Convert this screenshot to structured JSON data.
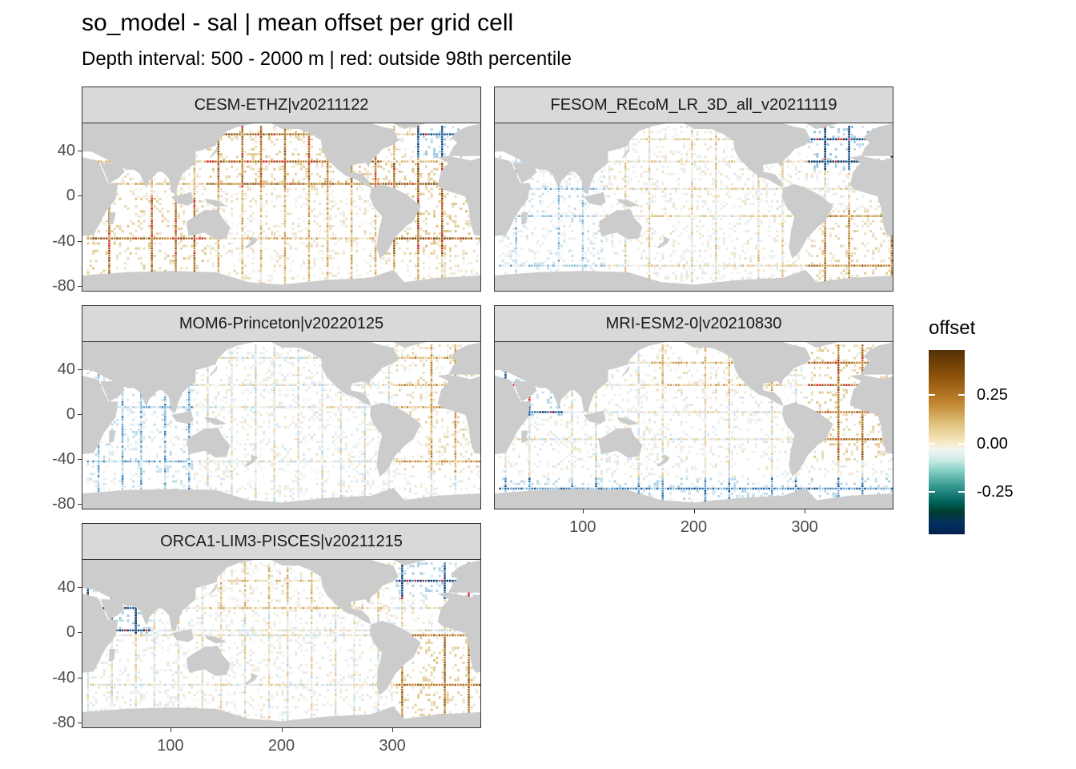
{
  "chart_data": {
    "type": "heatmap",
    "title": "so_model - sal  | mean offset per grid cell",
    "subtitle": "Depth interval: 500 - 2000 m | red: outside 98th percentile",
    "x_ticks": [
      100,
      200,
      300
    ],
    "y_ticks": [
      40,
      0,
      -40,
      -80
    ],
    "xlim": [
      20,
      380
    ],
    "ylim": [
      -85,
      65
    ],
    "legend": {
      "title": "offset",
      "ticks": [
        0.25,
        0.0,
        -0.25
      ],
      "tick_labels": [
        "0.25",
        "0.00",
        "-0.25"
      ],
      "range": [
        -0.5,
        0.5
      ],
      "placement": "right"
    },
    "panels": [
      {
        "name": "CESM-ETHZ|v20211122",
        "dominant_offset": "positive (brown) in Pacific and Atlantic; red outliers in tropical Atlantic",
        "seed": 11
      },
      {
        "name": "FESOM_REcoM_LR_3D_all_v20211119",
        "dominant_offset": "negative (blue) in North Atlantic; positive in South Atlantic",
        "seed": 23
      },
      {
        "name": "MOM6-Princeton|v20220125",
        "dominant_offset": "near zero; slight negative Indian Ocean; positive Atlantic",
        "seed": 37
      },
      {
        "name": "MRI-ESM2-0|v20210830",
        "dominant_offset": "positive Atlantic; negative Southern Ocean and Arabian Sea",
        "seed": 41
      },
      {
        "name": "ORCA1-LIM3-PISCES|v20211215",
        "dominant_offset": "negative North Atlantic and Arabian Sea; positive South Atlantic",
        "seed": 53
      }
    ]
  },
  "colors": {
    "land": "#cccccc",
    "outlier": "#e31a1c",
    "grid": "#ebebeb"
  }
}
